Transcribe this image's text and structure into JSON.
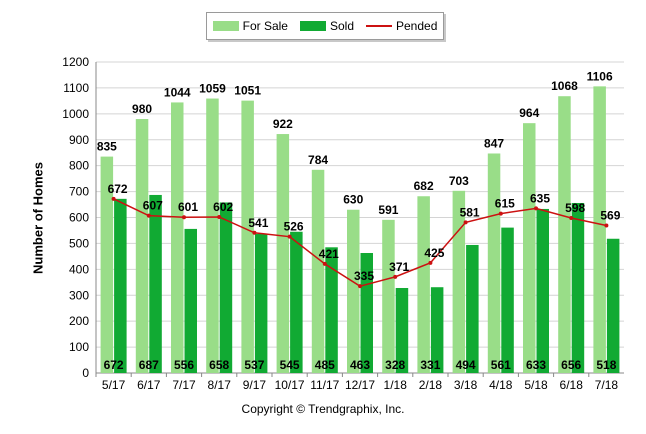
{
  "chart_data": {
    "type": "bar",
    "categories": [
      "5/17",
      "6/17",
      "7/17",
      "8/17",
      "9/17",
      "10/17",
      "11/17",
      "12/17",
      "1/18",
      "2/18",
      "3/18",
      "4/18",
      "5/18",
      "6/18",
      "7/18"
    ],
    "series": [
      {
        "name": "For Sale",
        "kind": "bar",
        "color": "#99dd88",
        "values": [
          835,
          980,
          1044,
          1059,
          1051,
          922,
          784,
          630,
          591,
          682,
          703,
          847,
          964,
          1068,
          1106
        ]
      },
      {
        "name": "Sold",
        "kind": "bar",
        "color": "#11aa33",
        "values": [
          672,
          687,
          556,
          658,
          537,
          545,
          485,
          463,
          328,
          331,
          494,
          561,
          633,
          656,
          518
        ]
      },
      {
        "name": "Pended",
        "kind": "line",
        "color": "#cc1111",
        "values": [
          672,
          607,
          601,
          602,
          541,
          526,
          421,
          335,
          371,
          425,
          581,
          615,
          635,
          598,
          569
        ]
      }
    ],
    "ylabel": "Number of Homes",
    "xlabel": "",
    "ylim": [
      0,
      1200
    ],
    "yticks": [
      0,
      100,
      200,
      300,
      400,
      500,
      600,
      700,
      800,
      900,
      1000,
      1100,
      1200
    ],
    "grid": true,
    "legend": "top-center"
  },
  "footer": {
    "copyright": "Copyright © Trendgraphix, Inc."
  }
}
